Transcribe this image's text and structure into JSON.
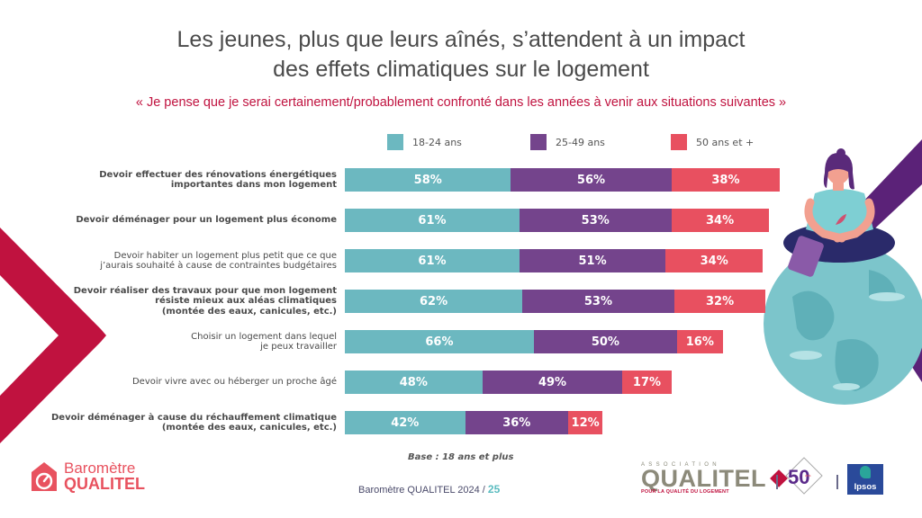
{
  "header": {
    "title_line1": "Les jeunes, plus que leurs aînés, s’attendent à un impact",
    "title_line2": "des effets climatiques sur le logement",
    "subtitle": "« Je pense que je serai certainement/probablement confronté dans les années à venir aux situations suivantes »"
  },
  "colors": {
    "series_18_24": "#6cb8c0",
    "series_25_49": "#74448c",
    "series_50_plus": "#e85060",
    "accent_red": "#c0123f",
    "accent_purple": "#5b2278"
  },
  "chart_data": {
    "type": "bar",
    "orientation": "horizontal",
    "stacked": true,
    "title": "Les jeunes, plus que leurs aînés, s’attendent à un impact des effets climatiques sur le logement",
    "subtitle": "« Je pense que je serai certainement/probablement confronté dans les années à venir aux situations suivantes »",
    "legend_position": "top",
    "unit": "%",
    "xlabel": "",
    "ylabel": "",
    "grid": false,
    "categories": [
      {
        "lines": [
          "Devoir effectuer des rénovations énergétiques",
          "importantes dans mon logement"
        ],
        "bold": true
      },
      {
        "lines": [
          "Devoir déménager pour un logement plus économe"
        ],
        "bold": true
      },
      {
        "lines": [
          "Devoir habiter un logement plus petit que ce que",
          "j’aurais souhaité à cause de contraintes budgétaires"
        ],
        "bold": false
      },
      {
        "lines": [
          "Devoir réaliser des travaux pour que mon logement",
          "résiste mieux aux aléas climatiques",
          "(montée des eaux, canicules, etc.)"
        ],
        "bold": true
      },
      {
        "lines": [
          "Choisir un logement dans lequel",
          "je peux travailler"
        ],
        "bold": false
      },
      {
        "lines": [
          "Devoir vivre avec ou héberger un proche âgé"
        ],
        "bold": false
      },
      {
        "lines": [
          "Devoir déménager à cause du réchauffement climatique",
          "(montée des eaux, canicules, etc.)"
        ],
        "bold": true
      }
    ],
    "series": [
      {
        "name": "18-24 ans",
        "color": "#6cb8c0",
        "values": [
          58,
          61,
          61,
          62,
          66,
          48,
          42
        ]
      },
      {
        "name": "25-49 ans",
        "color": "#74448c",
        "values": [
          56,
          53,
          51,
          53,
          50,
          49,
          36
        ]
      },
      {
        "name": "50 ans et +",
        "color": "#e85060",
        "values": [
          38,
          34,
          34,
          32,
          16,
          17,
          12
        ]
      }
    ],
    "note": "Base : 18 ans et plus"
  },
  "footer": {
    "base_note": "Base : 18 ans et plus",
    "report_label": "Baromètre QUALITEL 2024 / ",
    "page_number": "25",
    "logo_baro_line1": "Baromètre",
    "logo_baro_line2": "QUALITEL",
    "qualitel_assoc": "ASSOCIATION",
    "qualitel_name": "QUALITEL",
    "qualitel_tagline": "POUR LA QUALITÉ DU LOGEMENT",
    "anniversary": "50",
    "anniversary_sub": "ans",
    "ipsos": "Ipsos"
  }
}
